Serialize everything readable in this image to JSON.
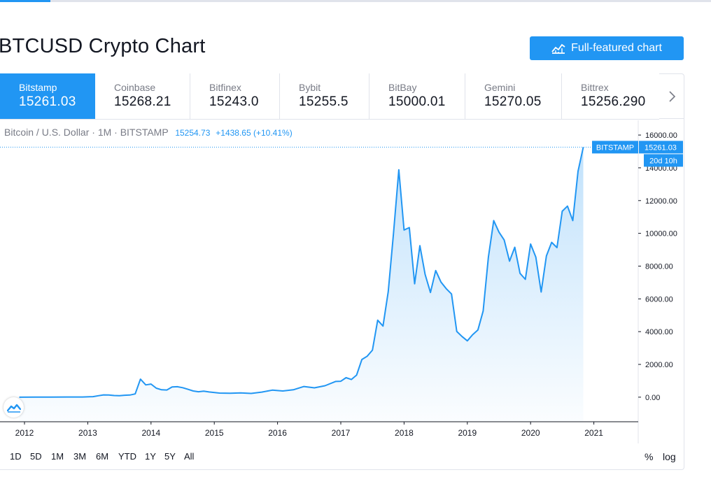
{
  "page": {
    "title": "BTCUSD Crypto Chart",
    "full_chart_label": "Full-featured chart"
  },
  "exchanges": [
    {
      "name": "Bitstamp",
      "price": "15261.03",
      "active": true
    },
    {
      "name": "Coinbase",
      "price": "15268.21",
      "active": false
    },
    {
      "name": "Bitfinex",
      "price": "15243.0",
      "active": false
    },
    {
      "name": "Bybit",
      "price": "15255.5",
      "active": false
    },
    {
      "name": "BitBay",
      "price": "15000.01",
      "active": false
    },
    {
      "name": "Gemini",
      "price": "15270.05",
      "active": false
    },
    {
      "name": "Bittrex",
      "price": "15256.290",
      "active": false
    }
  ],
  "legend": {
    "symbol": "Bitcoin / U.S. Dollar · 1M · BITSTAMP",
    "last_price": "15254.73",
    "change": "+1438.65 (+10.41%)"
  },
  "price_label": {
    "exchange": "BITSTAMP",
    "value": "15261.03",
    "countdown": "20d 10h"
  },
  "range_buttons": [
    "1D",
    "5D",
    "1M",
    "3M",
    "6M",
    "YTD",
    "1Y",
    "5Y",
    "All"
  ],
  "axis_options": {
    "percent": "%",
    "log": "log"
  },
  "colors": {
    "accent": "#2196f3",
    "line": "#2196f3",
    "text": "#131722",
    "muted": "#787b86"
  },
  "icons": {
    "full_chart": "chart-icon",
    "next": "chevron-right-icon",
    "logo": "tradingview-logo-icon"
  },
  "chart_data": {
    "type": "area",
    "series": [
      {
        "x": [
          "2011-12",
          "2012-03",
          "2012-06",
          "2012-09",
          "2012-12",
          "2013-02",
          "2013-03",
          "2013-04",
          "2013-05",
          "2013-06",
          "2013-07",
          "2013-08",
          "2013-09",
          "2013-10",
          "2013-11",
          "2013-12",
          "2014-01",
          "2014-02",
          "2014-03",
          "2014-04",
          "2014-05",
          "2014-06",
          "2014-07",
          "2014-08",
          "2014-09",
          "2014-10",
          "2014-11",
          "2014-12",
          "2015-02",
          "2015-04",
          "2015-06",
          "2015-08",
          "2015-10",
          "2015-12",
          "2016-02",
          "2016-04",
          "2016-06",
          "2016-08",
          "2016-10",
          "2016-12",
          "2017-01",
          "2017-02",
          "2017-03",
          "2017-04",
          "2017-05",
          "2017-06",
          "2017-07",
          "2017-08",
          "2017-09",
          "2017-10",
          "2017-11",
          "2017-12",
          "2018-01",
          "2018-02",
          "2018-03",
          "2018-04",
          "2018-05",
          "2018-06",
          "2018-07",
          "2018-08",
          "2018-09",
          "2018-10",
          "2018-11",
          "2018-12",
          "2019-01",
          "2019-02",
          "2019-03",
          "2019-04",
          "2019-05",
          "2019-06",
          "2019-07",
          "2019-08",
          "2019-09",
          "2019-10",
          "2019-11",
          "2019-12",
          "2020-01",
          "2020-02",
          "2020-03",
          "2020-04",
          "2020-05",
          "2020-06",
          "2020-07",
          "2020-08",
          "2020-09",
          "2020-10",
          "2020-11"
        ],
        "y": [
          0,
          5,
          7,
          12,
          13,
          33,
          90,
          140,
          130,
          100,
          90,
          120,
          130,
          200,
          1100,
          750,
          800,
          550,
          450,
          440,
          620,
          640,
          580,
          480,
          380,
          330,
          370,
          320,
          250,
          240,
          260,
          230,
          310,
          430,
          380,
          450,
          650,
          570,
          700,
          960,
          970,
          1190,
          1080,
          1350,
          2300,
          2500,
          2870,
          4700,
          4340,
          6450,
          10000,
          13880,
          10200,
          10350,
          6920,
          9250,
          7490,
          6390,
          7730,
          7030,
          6620,
          6300,
          4010,
          3700,
          3440,
          3810,
          4100,
          5260,
          8550,
          10780,
          10080,
          9590,
          8300,
          9150,
          7560,
          7190,
          9350,
          8550,
          6420,
          8620,
          9450,
          9130,
          11350,
          11660,
          10780,
          13790,
          15254.73
        ]
      }
    ],
    "x_ticks": [
      "2012",
      "2013",
      "2014",
      "2015",
      "2016",
      "2017",
      "2018",
      "2019",
      "2020",
      "2021"
    ],
    "y_ticks": [
      "0.00",
      "2000.00",
      "4000.00",
      "6000.00",
      "8000.00",
      "10000.00",
      "12000.00",
      "14000.00",
      "16000.00"
    ],
    "ylim": [
      -1500,
      16900
    ],
    "grid": false,
    "last_value": 15261.03
  }
}
